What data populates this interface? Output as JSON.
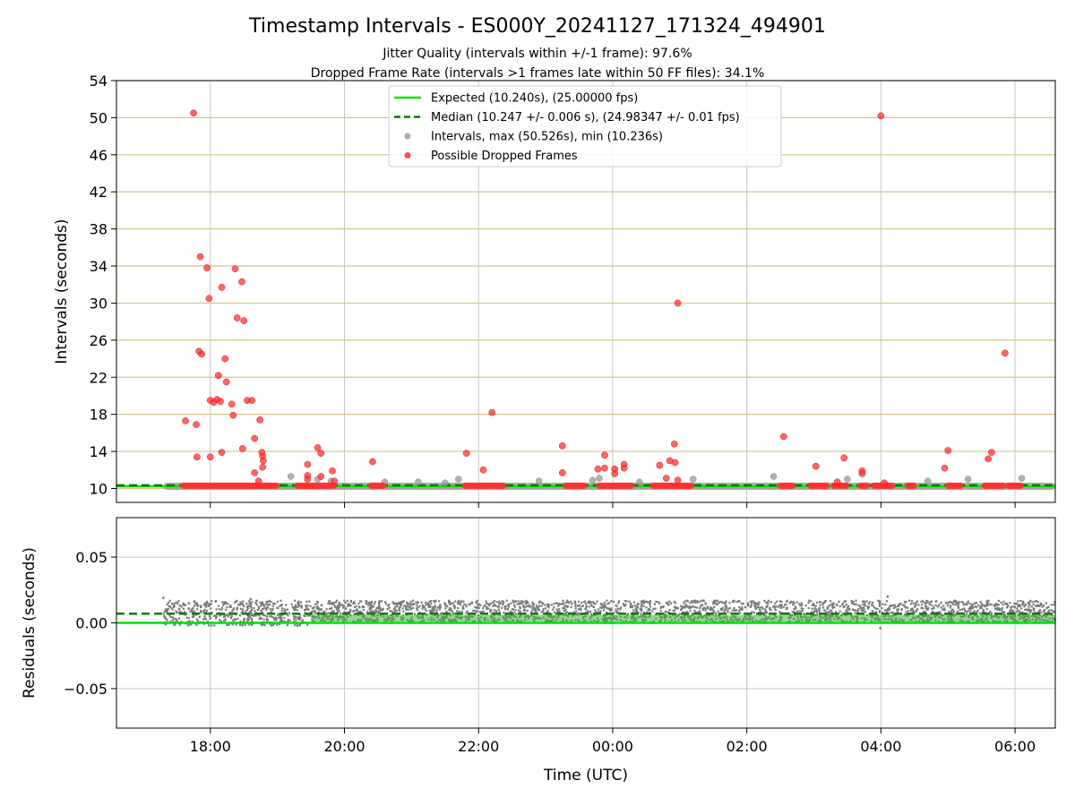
{
  "chart_data": {
    "type": "scatter",
    "title": "Timestamp Intervals - ES000Y_20241127_171324_494901",
    "subtitle_lines": [
      "Jitter Quality (intervals within +/-1 frame): 97.6%",
      "Dropped Frame Rate (intervals >1 frames late within 50 FF files): 34.1%"
    ],
    "x_axis": {
      "label": "Time (UTC)",
      "range_hours": [
        16.6,
        30.6
      ],
      "ticks": [
        {
          "value": 18,
          "label": "18:00"
        },
        {
          "value": 20,
          "label": "20:00"
        },
        {
          "value": 22,
          "label": "22:00"
        },
        {
          "value": 24,
          "label": "00:00"
        },
        {
          "value": 26,
          "label": "02:00"
        },
        {
          "value": 28,
          "label": "04:00"
        },
        {
          "value": 30,
          "label": "06:00"
        }
      ],
      "grid": true
    },
    "top_panel": {
      "ylabel": "Intervals (seconds)",
      "ylim": [
        8.5,
        54
      ],
      "yticks": [
        10,
        14,
        18,
        22,
        26,
        30,
        34,
        38,
        42,
        46,
        50,
        54
      ],
      "horizontal_grid_color": "#d4c48a",
      "legend_position": "top-center",
      "legend": [
        {
          "label": "Expected (10.240s), (25.00000 fps)",
          "style": "solid-line",
          "color": "#00e000"
        },
        {
          "label": "Median (10.247 +/- 0.006 s), (24.98347 +/- 0.01 fps)",
          "style": "dashed-line",
          "color": "#0a7a0a"
        },
        {
          "label": "Intervals, max (50.526s), min (10.236s)",
          "style": "marker",
          "color": "#9e9e9e"
        },
        {
          "label": "Possible Dropped Frames",
          "style": "marker",
          "color": "#ff3030"
        }
      ],
      "expected": 10.24,
      "median": 10.247,
      "baseline_intervals": {
        "value": 10.24,
        "segments_hours": [
          [
            17.3,
            30.6
          ]
        ],
        "color": "#9e9e9e"
      },
      "dropped_frame_clusters": {
        "value": 10.3,
        "segments_hours": [
          [
            17.6,
            19.0
          ],
          [
            19.3,
            19.85
          ],
          [
            20.4,
            20.6
          ],
          [
            21.8,
            22.4
          ],
          [
            23.3,
            23.6
          ],
          [
            23.8,
            24.3
          ],
          [
            24.6,
            25.2
          ],
          [
            26.5,
            26.7
          ],
          [
            26.95,
            27.2
          ],
          [
            27.3,
            27.5
          ],
          [
            27.7,
            27.8
          ],
          [
            27.9,
            28.2
          ],
          [
            28.4,
            28.5
          ],
          [
            29.0,
            29.2
          ],
          [
            29.55,
            29.85
          ],
          [
            29.9,
            30.1
          ]
        ]
      },
      "gray_points": [
        {
          "x": 19.2,
          "y": 11.3
        },
        {
          "x": 19.6,
          "y": 11.0
        },
        {
          "x": 19.8,
          "y": 10.8
        },
        {
          "x": 20.6,
          "y": 10.7
        },
        {
          "x": 21.1,
          "y": 10.7
        },
        {
          "x": 21.5,
          "y": 10.6
        },
        {
          "x": 21.7,
          "y": 11.0
        },
        {
          "x": 22.9,
          "y": 10.8
        },
        {
          "x": 23.7,
          "y": 10.9
        },
        {
          "x": 23.8,
          "y": 11.1
        },
        {
          "x": 24.4,
          "y": 10.7
        },
        {
          "x": 25.2,
          "y": 11.0
        },
        {
          "x": 26.4,
          "y": 11.3
        },
        {
          "x": 27.5,
          "y": 11.0
        },
        {
          "x": 28.7,
          "y": 10.8
        },
        {
          "x": 29.3,
          "y": 11.0
        },
        {
          "x": 30.1,
          "y": 11.1
        }
      ],
      "dropped_points": [
        {
          "x": 17.75,
          "y": 50.5
        },
        {
          "x": 17.85,
          "y": 35.0
        },
        {
          "x": 17.95,
          "y": 33.8
        },
        {
          "x": 17.98,
          "y": 30.5
        },
        {
          "x": 18.17,
          "y": 31.7
        },
        {
          "x": 18.37,
          "y": 33.7
        },
        {
          "x": 18.47,
          "y": 32.3
        },
        {
          "x": 18.4,
          "y": 28.4
        },
        {
          "x": 18.5,
          "y": 28.1
        },
        {
          "x": 17.83,
          "y": 24.8
        },
        {
          "x": 17.87,
          "y": 24.5
        },
        {
          "x": 18.22,
          "y": 24.0
        },
        {
          "x": 18.12,
          "y": 22.2
        },
        {
          "x": 18.24,
          "y": 21.5
        },
        {
          "x": 18.0,
          "y": 19.5
        },
        {
          "x": 18.05,
          "y": 19.3
        },
        {
          "x": 18.1,
          "y": 19.6
        },
        {
          "x": 18.15,
          "y": 19.4
        },
        {
          "x": 18.32,
          "y": 19.1
        },
        {
          "x": 18.55,
          "y": 19.5
        },
        {
          "x": 18.62,
          "y": 19.5
        },
        {
          "x": 18.34,
          "y": 17.9
        },
        {
          "x": 17.63,
          "y": 17.3
        },
        {
          "x": 17.79,
          "y": 16.9
        },
        {
          "x": 18.74,
          "y": 17.4
        },
        {
          "x": 18.66,
          "y": 15.4
        },
        {
          "x": 18.48,
          "y": 14.3
        },
        {
          "x": 18.17,
          "y": 13.9
        },
        {
          "x": 18.77,
          "y": 13.9
        },
        {
          "x": 18.78,
          "y": 13.5
        },
        {
          "x": 18.79,
          "y": 13.0
        },
        {
          "x": 18.78,
          "y": 12.3
        },
        {
          "x": 17.8,
          "y": 13.4
        },
        {
          "x": 18.0,
          "y": 13.4
        },
        {
          "x": 18.66,
          "y": 11.7
        },
        {
          "x": 18.72,
          "y": 10.8
        },
        {
          "x": 19.6,
          "y": 14.4
        },
        {
          "x": 19.65,
          "y": 13.8
        },
        {
          "x": 19.45,
          "y": 12.6
        },
        {
          "x": 19.45,
          "y": 11.4
        },
        {
          "x": 19.45,
          "y": 11.0
        },
        {
          "x": 19.65,
          "y": 11.3
        },
        {
          "x": 19.82,
          "y": 11.9
        },
        {
          "x": 19.85,
          "y": 10.8
        },
        {
          "x": 20.42,
          "y": 12.9
        },
        {
          "x": 21.82,
          "y": 13.8
        },
        {
          "x": 22.07,
          "y": 12.0
        },
        {
          "x": 22.2,
          "y": 18.2
        },
        {
          "x": 23.25,
          "y": 14.6
        },
        {
          "x": 23.25,
          "y": 11.7
        },
        {
          "x": 23.78,
          "y": 12.1
        },
        {
          "x": 23.88,
          "y": 12.2
        },
        {
          "x": 23.88,
          "y": 13.6
        },
        {
          "x": 24.03,
          "y": 12.1
        },
        {
          "x": 24.03,
          "y": 11.6
        },
        {
          "x": 24.17,
          "y": 12.6
        },
        {
          "x": 24.17,
          "y": 12.2
        },
        {
          "x": 24.92,
          "y": 14.8
        },
        {
          "x": 24.97,
          "y": 30.0
        },
        {
          "x": 24.7,
          "y": 12.5
        },
        {
          "x": 24.85,
          "y": 13.0
        },
        {
          "x": 24.93,
          "y": 12.8
        },
        {
          "x": 24.8,
          "y": 11.1
        },
        {
          "x": 24.97,
          "y": 10.9
        },
        {
          "x": 26.55,
          "y": 15.6
        },
        {
          "x": 27.03,
          "y": 12.4
        },
        {
          "x": 27.45,
          "y": 13.3
        },
        {
          "x": 27.72,
          "y": 11.9
        },
        {
          "x": 27.72,
          "y": 11.6
        },
        {
          "x": 28.0,
          "y": 50.2
        },
        {
          "x": 28.05,
          "y": 10.6
        },
        {
          "x": 28.95,
          "y": 12.2
        },
        {
          "x": 29.0,
          "y": 14.1
        },
        {
          "x": 29.6,
          "y": 13.2
        },
        {
          "x": 29.65,
          "y": 13.9
        },
        {
          "x": 29.85,
          "y": 24.6
        },
        {
          "x": 27.35,
          "y": 10.7
        }
      ]
    },
    "bottom_panel": {
      "ylabel": "Residuals (seconds)",
      "ylim": [
        -0.08,
        0.08
      ],
      "yticks": [
        {
          "value": 0.05,
          "label": "0.05"
        },
        {
          "value": 0.0,
          "label": "0.00"
        },
        {
          "value": -0.05,
          "label": "−0.05"
        }
      ],
      "expected_residual": 0.0,
      "median_residual": 0.007,
      "residual_bands": [
        {
          "x0": 17.3,
          "x1": 19.5,
          "low": -0.002,
          "high": 0.017
        },
        {
          "x0": 19.5,
          "x1": 30.6,
          "low": 0.0,
          "high": 0.017
        }
      ],
      "residual_core": {
        "low": 0.001,
        "high": 0.006
      },
      "residual_outliers": [
        {
          "x": 17.3,
          "y": 0.019
        },
        {
          "x": 19.3,
          "y": -0.002
        },
        {
          "x": 18.6,
          "y": 0.018
        },
        {
          "x": 27.99,
          "y": -0.004
        },
        {
          "x": 28.1,
          "y": 0.02
        },
        {
          "x": 24.0,
          "y": 0.0
        }
      ]
    },
    "colors": {
      "expected": "#00e000",
      "median": "#0a7a0a",
      "interval_marker": "#9e9e9e",
      "dropped_marker": "#ff3030",
      "residual_marker": "#7a7a7a",
      "residual_core": "#3cb43c"
    }
  }
}
